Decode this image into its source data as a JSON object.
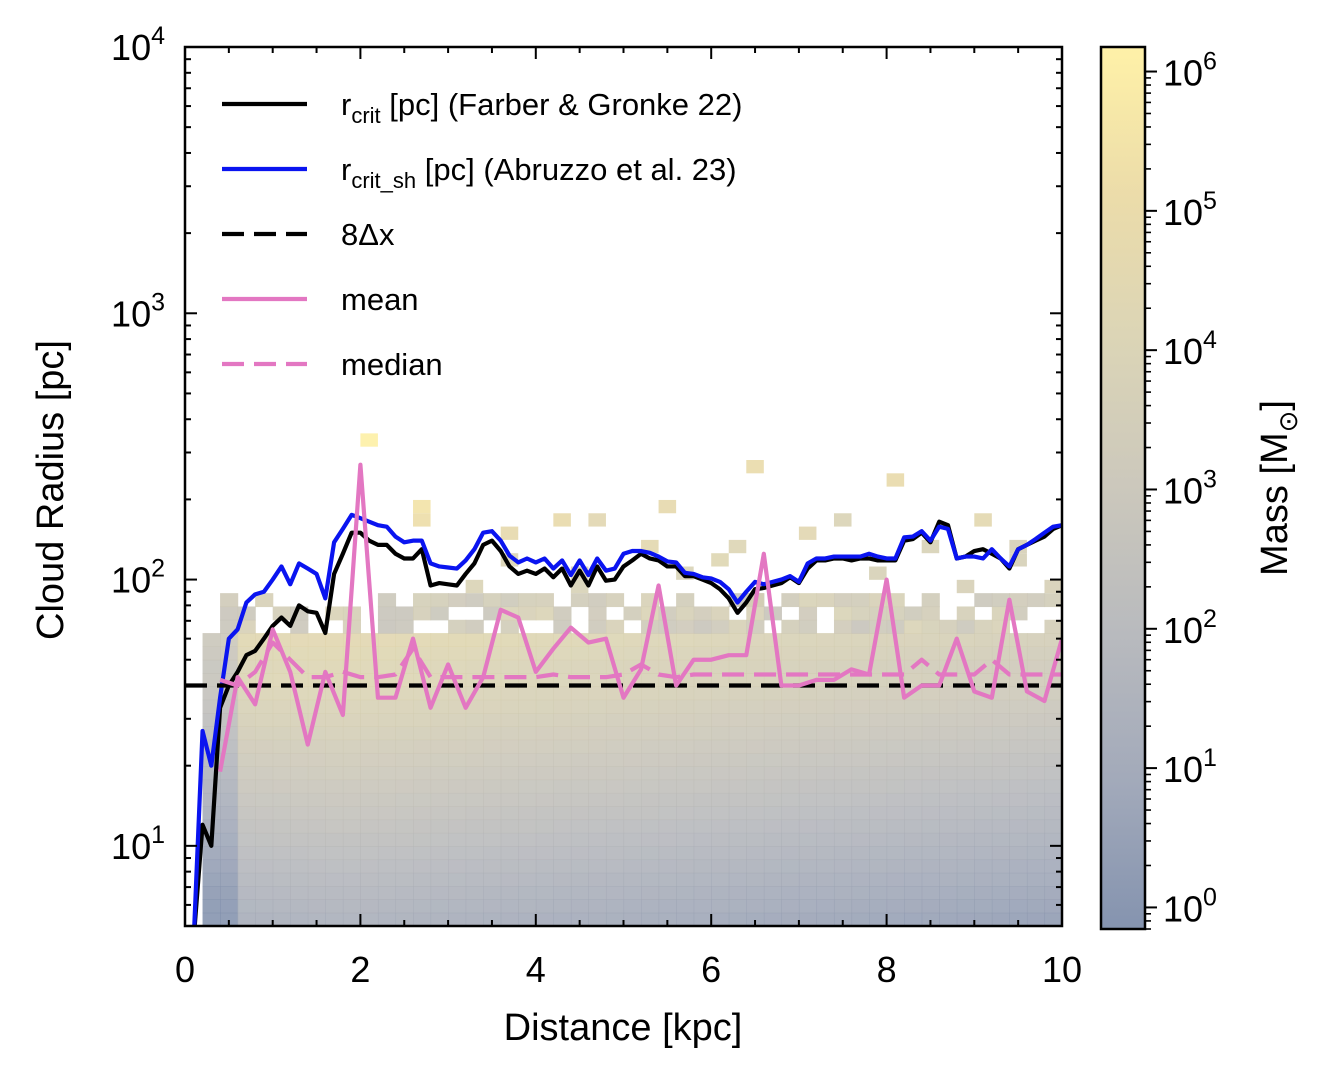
{
  "chart_data": {
    "type": "heatmap",
    "xlabel": "Distance [kpc]",
    "ylabel": "Cloud Radius [pc]",
    "xlim": [
      0,
      10
    ],
    "ylim": [
      5,
      10000
    ],
    "yscale": "log",
    "x_ticks": [
      {
        "value": 0,
        "label": "0"
      },
      {
        "value": 2,
        "label": "2"
      },
      {
        "value": 4,
        "label": "4"
      },
      {
        "value": 6,
        "label": "6"
      },
      {
        "value": 8,
        "label": "8"
      },
      {
        "value": 10,
        "label": "10"
      }
    ],
    "y_ticks": [
      {
        "value": 10,
        "base": "10",
        "exp": "1"
      },
      {
        "value": 100,
        "base": "10",
        "exp": "2"
      },
      {
        "value": 1000,
        "base": "10",
        "exp": "3"
      },
      {
        "value": 10000,
        "base": "10",
        "exp": "4"
      }
    ],
    "colorbar": {
      "label": "Mass [M",
      "label_sub": "⊙",
      "label_end": "]",
      "scale": "log",
      "range": [
        0.7,
        1500000
      ],
      "colors": [
        "#7a8aa8",
        "#9aa2b4",
        "#b2b4b8",
        "#c7c3b6",
        "#d8d1b0",
        "#ead9a2",
        "#fff0a0"
      ],
      "ticks": [
        {
          "value": 1,
          "base": "10",
          "exp": "0"
        },
        {
          "value": 10,
          "base": "10",
          "exp": "1"
        },
        {
          "value": 100,
          "base": "10",
          "exp": "2"
        },
        {
          "value": 1000,
          "base": "10",
          "exp": "3"
        },
        {
          "value": 10000,
          "base": "10",
          "exp": "4"
        },
        {
          "value": 100000,
          "base": "10",
          "exp": "5"
        },
        {
          "value": 1000000,
          "base": "10",
          "exp": "6"
        }
      ]
    },
    "grid": false,
    "legend_position": "top-left",
    "histogram_bins": {
      "x_width_kpc": 0.2,
      "log_y_width": 0.05
    },
    "histogram_sparse_cells": [
      {
        "x": 2.0,
        "y": 330,
        "mass": 1200000
      },
      {
        "x": 2.6,
        "y": 195,
        "mass": 300000
      },
      {
        "x": 2.6,
        "y": 175,
        "mass": 150000
      },
      {
        "x": 3.6,
        "y": 155,
        "mass": 60000
      },
      {
        "x": 4.2,
        "y": 175,
        "mass": 80000
      },
      {
        "x": 4.8,
        "y": 165,
        "mass": 30000
      },
      {
        "x": 5.2,
        "y": 135,
        "mass": 40000
      },
      {
        "x": 5.4,
        "y": 190,
        "mass": 60000
      },
      {
        "x": 6.0,
        "y": 125,
        "mass": 20000
      },
      {
        "x": 6.2,
        "y": 140,
        "mass": 15000
      },
      {
        "x": 6.6,
        "y": 255,
        "mass": 90000
      },
      {
        "x": 7.0,
        "y": 150,
        "mass": 30000
      },
      {
        "x": 7.4,
        "y": 175,
        "mass": 10000
      },
      {
        "x": 8.0,
        "y": 225,
        "mass": 80000
      },
      {
        "x": 8.6,
        "y": 130,
        "mass": 8000
      },
      {
        "x": 9.2,
        "y": 170,
        "mass": 40000
      },
      {
        "x": 9.4,
        "y": 135,
        "mass": 6000
      },
      {
        "x": 9.6,
        "y": 115,
        "mass": 5000
      },
      {
        "x": 3.8,
        "y": 125,
        "mass": 12000
      },
      {
        "x": 4.4,
        "y": 110,
        "mass": 10000
      },
      {
        "x": 5.8,
        "y": 105,
        "mass": 9000
      },
      {
        "x": 7.8,
        "y": 105,
        "mass": 7000
      },
      {
        "x": 8.8,
        "y": 95,
        "mass": 6000
      },
      {
        "x": 9.8,
        "y": 95,
        "mass": 6000
      },
      {
        "x": 3.2,
        "y": 90,
        "mass": 10000
      },
      {
        "x": 4.6,
        "y": 92,
        "mass": 8000
      },
      {
        "x": 6.4,
        "y": 88,
        "mass": 5000
      }
    ],
    "series": [
      {
        "name": "r",
        "name_sub": "crit",
        "name_rest": " [pc] (Farber & Gronke 22)",
        "style": "solid",
        "color": "#000000",
        "x": [
          0.1,
          0.2,
          0.3,
          0.4,
          0.5,
          0.6,
          0.7,
          0.8,
          0.9,
          1.0,
          1.1,
          1.2,
          1.3,
          1.4,
          1.5,
          1.6,
          1.7,
          1.8,
          1.9,
          2.0,
          2.1,
          2.2,
          2.3,
          2.4,
          2.5,
          2.6,
          2.7,
          2.8,
          2.9,
          3.0,
          3.1,
          3.2,
          3.3,
          3.4,
          3.5,
          3.6,
          3.7,
          3.8,
          3.9,
          4.0,
          4.1,
          4.2,
          4.3,
          4.4,
          4.5,
          4.6,
          4.7,
          4.8,
          4.9,
          5.0,
          5.1,
          5.2,
          5.3,
          5.4,
          5.5,
          5.6,
          5.7,
          5.8,
          5.9,
          6.0,
          6.1,
          6.2,
          6.3,
          6.4,
          6.5,
          6.6,
          6.7,
          6.8,
          6.9,
          7.0,
          7.1,
          7.2,
          7.3,
          7.4,
          7.5,
          7.6,
          7.7,
          7.8,
          7.9,
          8.0,
          8.1,
          8.2,
          8.3,
          8.4,
          8.5,
          8.6,
          8.7,
          8.8,
          8.9,
          9.0,
          9.1,
          9.2,
          9.3,
          9.4,
          9.5,
          9.6,
          9.7,
          9.8,
          9.9,
          10.0
        ],
        "y": [
          4.5,
          12,
          10,
          33,
          40,
          45,
          52,
          54,
          60,
          67,
          72,
          67,
          80,
          76,
          75,
          63,
          105,
          125,
          150,
          150,
          140,
          135,
          135,
          125,
          120,
          120,
          130,
          95,
          97,
          96,
          95,
          105,
          115,
          135,
          140,
          128,
          112,
          105,
          108,
          105,
          110,
          102,
          110,
          95,
          108,
          95,
          112,
          99,
          100,
          112,
          118,
          125,
          120,
          118,
          112,
          112,
          103,
          103,
          100,
          97,
          92,
          85,
          75,
          82,
          92,
          93,
          95,
          97,
          102,
          97,
          110,
          118,
          118,
          120,
          120,
          118,
          120,
          120,
          118,
          118,
          118,
          140,
          142,
          150,
          138,
          165,
          160,
          120,
          122,
          128,
          130,
          125,
          120,
          110,
          130,
          135,
          140,
          145,
          155,
          160
        ]
      },
      {
        "name": "r",
        "name_sub": "crit_sh",
        "name_rest": " [pc] (Abruzzo et al. 23)",
        "style": "solid",
        "color": "#0a14f0",
        "x": [
          0.1,
          0.2,
          0.3,
          0.4,
          0.5,
          0.6,
          0.7,
          0.8,
          0.9,
          1.0,
          1.1,
          1.2,
          1.3,
          1.4,
          1.5,
          1.6,
          1.7,
          1.8,
          1.9,
          2.0,
          2.1,
          2.2,
          2.3,
          2.4,
          2.5,
          2.6,
          2.7,
          2.8,
          2.9,
          3.0,
          3.1,
          3.2,
          3.3,
          3.4,
          3.5,
          3.6,
          3.7,
          3.8,
          3.9,
          4.0,
          4.1,
          4.2,
          4.3,
          4.4,
          4.5,
          4.6,
          4.7,
          4.8,
          4.9,
          5.0,
          5.1,
          5.2,
          5.3,
          5.4,
          5.5,
          5.6,
          5.7,
          5.8,
          5.9,
          6.0,
          6.1,
          6.2,
          6.3,
          6.4,
          6.5,
          6.6,
          6.7,
          6.8,
          6.9,
          7.0,
          7.1,
          7.2,
          7.3,
          7.4,
          7.5,
          7.6,
          7.7,
          7.8,
          7.9,
          8.0,
          8.1,
          8.2,
          8.3,
          8.4,
          8.5,
          8.6,
          8.7,
          8.8,
          8.9,
          9.0,
          9.1,
          9.2,
          9.3,
          9.4,
          9.5,
          9.6,
          9.7,
          9.8,
          9.9,
          10.0
        ],
        "y": [
          4.5,
          27,
          20,
          36,
          60,
          65,
          82,
          88,
          90,
          100,
          112,
          96,
          115,
          110,
          105,
          85,
          138,
          155,
          175,
          170,
          165,
          160,
          158,
          145,
          138,
          140,
          140,
          115,
          112,
          111,
          110,
          118,
          130,
          150,
          152,
          140,
          123,
          116,
          120,
          116,
          120,
          110,
          118,
          104,
          118,
          104,
          120,
          108,
          110,
          125,
          128,
          128,
          126,
          122,
          117,
          116,
          106,
          105,
          102,
          101,
          98,
          92,
          82,
          90,
          98,
          96,
          98,
          100,
          103,
          98,
          115,
          120,
          120,
          122,
          122,
          122,
          122,
          125,
          122,
          120,
          120,
          144,
          145,
          152,
          140,
          158,
          155,
          120,
          122,
          122,
          120,
          130,
          120,
          112,
          130,
          135,
          142,
          150,
          158,
          160
        ]
      },
      {
        "name": "8Δx",
        "style": "dashed",
        "color": "#000000",
        "x": [
          0,
          10
        ],
        "y": [
          40,
          40
        ]
      },
      {
        "name": "mean",
        "style": "solid",
        "color": "#e377c2",
        "x": [
          0.4,
          0.6,
          0.8,
          1.0,
          1.2,
          1.4,
          1.6,
          1.8,
          2.0,
          2.2,
          2.4,
          2.6,
          2.8,
          3.0,
          3.2,
          3.4,
          3.6,
          3.8,
          4.0,
          4.2,
          4.4,
          4.6,
          4.8,
          5.0,
          5.2,
          5.4,
          5.6,
          5.8,
          6.0,
          6.2,
          6.4,
          6.6,
          6.8,
          7.0,
          7.2,
          7.4,
          7.6,
          7.8,
          8.0,
          8.2,
          8.4,
          8.6,
          8.8,
          9.0,
          9.2,
          9.4,
          9.6,
          9.8,
          10.0
        ],
        "y": [
          19,
          43,
          34,
          65,
          45,
          24,
          45,
          31,
          270,
          36,
          36,
          60,
          33,
          48,
          33,
          43,
          77,
          72,
          45,
          55,
          66,
          58,
          60,
          36,
          46,
          95,
          40,
          50,
          50,
          52,
          52,
          125,
          40,
          40,
          42,
          42,
          46,
          44,
          100,
          36,
          40,
          40,
          60,
          38,
          36,
          84,
          38,
          35,
          60
        ]
      },
      {
        "name": "median",
        "style": "dashed",
        "color": "#e377c2",
        "x": [
          0.4,
          0.6,
          0.8,
          1.0,
          1.2,
          1.4,
          1.6,
          1.8,
          2.0,
          2.2,
          2.4,
          2.6,
          2.8,
          3.0,
          3.2,
          3.4,
          3.6,
          3.8,
          4.0,
          4.2,
          4.4,
          4.6,
          4.8,
          5.0,
          5.2,
          5.4,
          5.6,
          5.8,
          6.0,
          6.2,
          6.4,
          6.6,
          6.8,
          7.0,
          7.2,
          7.4,
          7.6,
          7.8,
          8.0,
          8.2,
          8.4,
          8.6,
          8.8,
          9.0,
          9.2,
          9.4,
          9.6,
          9.8,
          10.0
        ],
        "y": [
          42,
          40,
          45,
          58,
          50,
          43,
          43,
          45,
          43,
          43,
          44,
          55,
          43,
          43,
          43,
          43,
          43,
          43,
          43,
          44,
          43,
          43,
          43,
          44,
          48,
          44,
          43,
          44,
          44,
          44,
          44,
          44,
          44,
          44,
          44,
          44,
          44,
          44,
          44,
          44,
          50,
          44,
          44,
          44,
          50,
          44,
          44,
          44,
          44
        ]
      }
    ]
  }
}
